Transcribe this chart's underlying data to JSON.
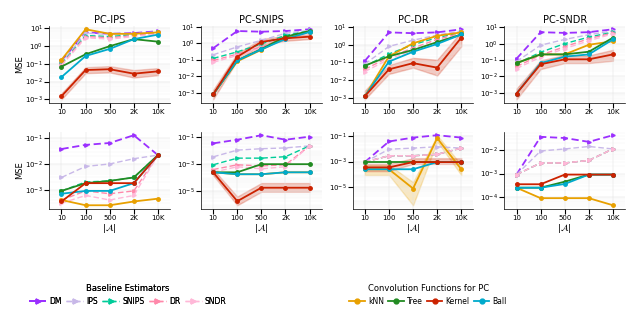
{
  "x_vals": [
    10,
    100,
    500,
    2000,
    10000
  ],
  "x_labels": [
    "10",
    "100",
    "500",
    "2K",
    "10K"
  ],
  "titles_top": [
    "PC-IPS",
    "PC-SNIPS",
    "PC-DR",
    "PC-SNDR"
  ],
  "colors": {
    "DM": "#9B30FF",
    "IPS": "#C8B8E8",
    "SNIPS": "#00CC99",
    "DR": "#FF88AA",
    "SNDR": "#FFB8D8",
    "kNN": "#E8A000",
    "Tree": "#228B22",
    "Kernel": "#CC2200",
    "Ball": "#00AACC"
  },
  "top": {
    "PC-IPS": {
      "DM": [
        0.15,
        6.0,
        5.0,
        5.5,
        7.0
      ],
      "IPS": [
        0.12,
        5.5,
        4.5,
        5.0,
        6.5
      ],
      "SNIPS": [
        0.1,
        4.0,
        3.5,
        4.5,
        6.0
      ],
      "DR": [
        0.09,
        3.5,
        3.0,
        4.0,
        5.5
      ],
      "SNDR": [
        0.08,
        3.0,
        2.5,
        3.5,
        5.0
      ],
      "kNN": [
        0.17,
        9.0,
        5.0,
        5.0,
        6.0
      ],
      "Tree": [
        0.07,
        0.35,
        1.0,
        2.5,
        1.8
      ],
      "Kernel": [
        0.0015,
        0.045,
        0.05,
        0.028,
        0.038
      ],
      "Ball": [
        0.018,
        0.28,
        0.7,
        2.5,
        4.5
      ],
      "Kernel_lo": [
        0.001,
        0.03,
        0.033,
        0.017,
        0.023
      ],
      "Kernel_hi": [
        0.0022,
        0.065,
        0.075,
        0.045,
        0.058
      ]
    },
    "PC-SNIPS": {
      "DM": [
        0.5,
        5.5,
        5.0,
        5.5,
        7.0
      ],
      "IPS": [
        0.2,
        0.6,
        1.5,
        4.0,
        6.0
      ],
      "SNIPS": [
        0.12,
        0.3,
        0.9,
        3.0,
        5.5
      ],
      "DR": [
        0.09,
        0.22,
        0.6,
        2.2,
        5.0
      ],
      "SNDR": [
        0.07,
        0.18,
        0.5,
        1.8,
        4.5
      ],
      "kNN": [
        0.0008,
        0.08,
        0.4,
        2.2,
        5.0
      ],
      "Tree": [
        0.0008,
        0.09,
        0.45,
        2.5,
        5.5
      ],
      "Kernel": [
        0.0008,
        0.15,
        1.2,
        2.0,
        2.5
      ],
      "Ball": [
        0.0008,
        0.09,
        0.42,
        1.8,
        4.8
      ],
      "Kernel_lo": [
        0.0004,
        0.09,
        0.8,
        1.4,
        1.8
      ],
      "Kernel_hi": [
        0.0015,
        0.25,
        1.8,
        2.8,
        3.5
      ]
    },
    "PC-DR": {
      "DM": [
        0.12,
        5.0,
        4.5,
        5.0,
        7.5
      ],
      "IPS": [
        0.08,
        0.8,
        1.8,
        3.5,
        6.0
      ],
      "SNIPS": [
        0.06,
        0.3,
        1.0,
        2.5,
        5.0
      ],
      "DR": [
        0.04,
        0.2,
        0.65,
        2.0,
        4.5
      ],
      "SNDR": [
        0.03,
        0.15,
        0.5,
        1.5,
        4.0
      ],
      "kNN": [
        0.0012,
        0.22,
        1.2,
        3.2,
        5.0
      ],
      "Tree": [
        0.065,
        0.22,
        0.5,
        1.4,
        3.8
      ],
      "Kernel": [
        0.0012,
        0.04,
        0.09,
        0.05,
        2.5
      ],
      "Ball": [
        0.0012,
        0.11,
        0.4,
        1.1,
        3.8
      ],
      "Kernel_lo": [
        0.0008,
        0.022,
        0.05,
        0.018,
        0.8
      ],
      "Kernel_hi": [
        0.0025,
        0.07,
        0.18,
        0.14,
        5.5
      ]
    },
    "PC-SNDR": {
      "DM": [
        0.12,
        5.0,
        4.5,
        5.0,
        7.5
      ],
      "IPS": [
        0.08,
        0.8,
        1.8,
        3.5,
        6.0
      ],
      "SNIPS": [
        0.06,
        0.3,
        1.0,
        2.5,
        5.0
      ],
      "DR": [
        0.04,
        0.2,
        0.65,
        2.0,
        4.5
      ],
      "SNDR": [
        0.03,
        0.15,
        0.5,
        1.5,
        4.0
      ],
      "kNN": [
        0.065,
        0.22,
        0.22,
        0.85,
        1.4
      ],
      "Tree": [
        0.065,
        0.22,
        0.22,
        0.32,
        2.3
      ],
      "Kernel": [
        0.0009,
        0.055,
        0.11,
        0.11,
        0.22
      ],
      "Ball": [
        0.0009,
        0.065,
        0.16,
        0.22,
        1.8
      ],
      "Kernel_lo": [
        0.0004,
        0.028,
        0.065,
        0.065,
        0.09
      ],
      "Kernel_hi": [
        0.0018,
        0.095,
        0.2,
        0.19,
        0.42
      ]
    }
  },
  "bottom": {
    "PC-IPS": {
      "DM": [
        0.038,
        0.055,
        0.065,
        0.13,
        0.022
      ],
      "IPS": [
        0.003,
        0.008,
        0.01,
        0.016,
        0.022
      ],
      "SNIPS": [
        0.0009,
        0.002,
        0.0022,
        0.003,
        0.022
      ],
      "DR": [
        0.0004,
        0.0009,
        0.0007,
        0.0009,
        0.022
      ],
      "SNDR": [
        0.0003,
        0.0006,
        0.0004,
        0.0006,
        0.022
      ],
      "kNN": [
        0.0004,
        0.00025,
        0.00025,
        0.00035,
        0.00045
      ],
      "Tree": [
        0.0009,
        0.0018,
        0.0022,
        0.003,
        0.022
      ],
      "Kernel": [
        0.00035,
        0.0018,
        0.0018,
        0.0018,
        0.022
      ],
      "Ball": [
        0.0007,
        0.0009,
        0.0009,
        0.0018,
        0.022
      ]
    },
    "PC-SNIPS": {
      "DM": [
        0.035,
        0.065,
        0.14,
        0.065,
        0.11
      ],
      "IPS": [
        0.0035,
        0.011,
        0.014,
        0.016,
        0.023
      ],
      "SNIPS": [
        0.0009,
        0.0028,
        0.0028,
        0.0036,
        0.023
      ],
      "DR": [
        0.0004,
        0.0009,
        0.00075,
        0.0009,
        0.023
      ],
      "SNDR": [
        0.00025,
        0.00065,
        0.00045,
        0.00065,
        0.023
      ],
      "kNN": [
        0.00025,
        0.00018,
        0.00018,
        0.00025,
        0.00025
      ],
      "Tree": [
        0.00025,
        0.00025,
        0.001,
        0.001,
        0.001
      ],
      "Kernel": [
        0.00025,
        1.8e-06,
        1.8e-05,
        1.8e-05,
        1.8e-05
      ],
      "Ball": [
        0.00025,
        0.00018,
        0.00018,
        0.00025,
        0.00025
      ],
      "Kernel_lo": [
        0.00015,
        9e-07,
        9e-06,
        9e-06,
        9e-06
      ],
      "Kernel_hi": [
        0.00042,
        4e-06,
        4e-05,
        4e-05,
        4e-05
      ]
    },
    "PC-DR": {
      "DM": [
        0.0009,
        0.036,
        0.072,
        0.11,
        0.072
      ],
      "IPS": [
        0.0009,
        0.009,
        0.011,
        0.014,
        0.011
      ],
      "SNIPS": [
        0.0009,
        0.0028,
        0.0028,
        0.0036,
        0.011
      ],
      "DR": [
        0.0009,
        0.0028,
        0.0028,
        0.0036,
        0.011
      ],
      "SNDR": [
        0.0009,
        0.0028,
        0.0028,
        0.0036,
        0.011
      ],
      "kNN": [
        0.00025,
        0.00025,
        8e-06,
        0.065,
        0.00025
      ],
      "Tree": [
        0.0009,
        0.0009,
        0.0009,
        0.0009,
        0.0009
      ],
      "Kernel": [
        0.00035,
        0.00035,
        0.0009,
        0.0009,
        0.0009
      ],
      "Ball": [
        0.00025,
        0.00025,
        0.00025,
        0.0009,
        0.0009
      ],
      "Kernel_lo": [
        0.00018,
        0.00018,
        0.00065,
        0.00065,
        0.00065
      ],
      "Kernel_hi": [
        0.00065,
        0.00065,
        0.0018,
        0.0018,
        0.0018
      ],
      "kNN_lo": [
        9e-05,
        9e-05,
        4e-07,
        0.036,
        9e-05
      ],
      "kNN_hi": [
        0.00055,
        0.00055,
        2.5e-05,
        0.11,
        0.00055
      ]
    },
    "PC-SNDR": {
      "DM": [
        0.0009,
        0.036,
        0.032,
        0.022,
        0.042
      ],
      "IPS": [
        0.0009,
        0.009,
        0.011,
        0.014,
        0.011
      ],
      "SNIPS": [
        0.0009,
        0.0028,
        0.0028,
        0.0036,
        0.011
      ],
      "DR": [
        0.0009,
        0.0028,
        0.0028,
        0.0036,
        0.011
      ],
      "SNDR": [
        0.0009,
        0.0028,
        0.0028,
        0.0036,
        0.011
      ],
      "kNN": [
        0.00025,
        9e-05,
        9e-05,
        9e-05,
        4.5e-05
      ],
      "Tree": [
        0.00025,
        0.00025,
        0.00045,
        0.0009,
        0.0009
      ],
      "Kernel": [
        0.00035,
        0.00035,
        0.0009,
        0.0009,
        0.0009
      ],
      "Ball": [
        0.00025,
        0.00025,
        0.00036,
        0.0009,
        0.0009
      ]
    }
  }
}
